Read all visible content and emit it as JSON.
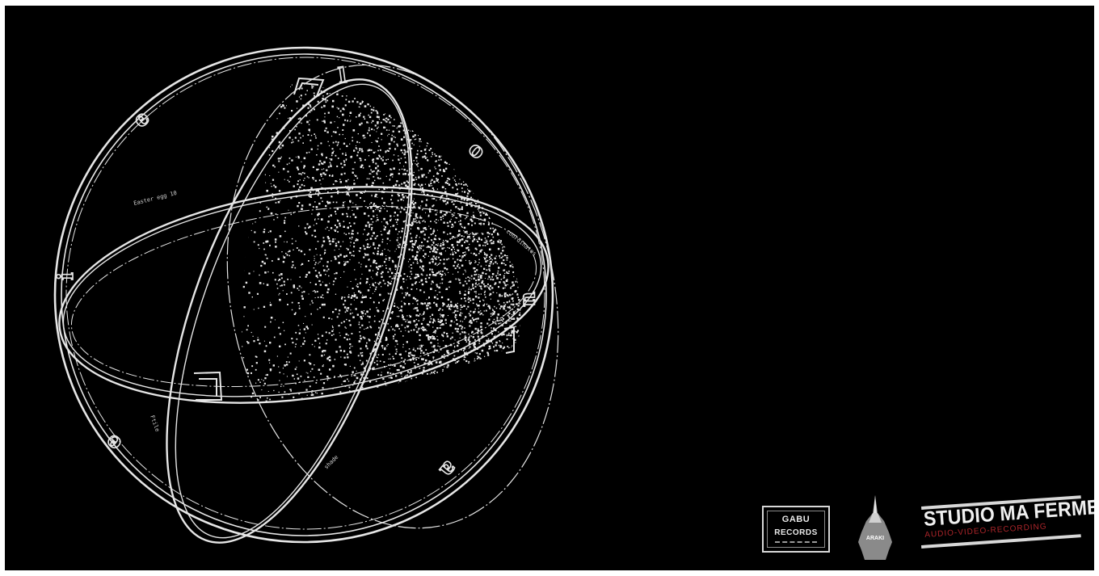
{
  "sphere": {
    "letters": [
      "e",
      "l",
      "o",
      "u",
      "a",
      "e",
      "i"
    ],
    "tiny_labels": [
      "Easter egg 10",
      "coordinates",
      "Ftile",
      "shade"
    ]
  },
  "logos": {
    "gabu": {
      "line1": "GABU",
      "line2": "RECORDS"
    },
    "araki": {
      "label": "ARAKI"
    },
    "studio": {
      "title": "STUDIO MA FERME",
      "subtitle": "AUDIO-VIDEO-RECORDING"
    }
  },
  "colors": {
    "background": "#000000",
    "line": "#e6e6e6",
    "accent_red": "#b0262b"
  }
}
